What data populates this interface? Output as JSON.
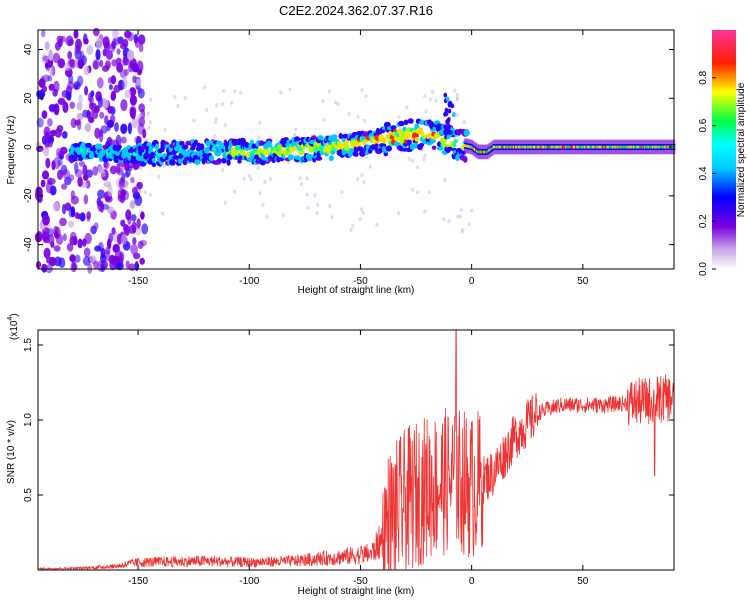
{
  "title": "C2E2.2024.362.07.37.R16",
  "chart_data": [
    {
      "type": "heatmap",
      "xlabel": "Height of straight line (km)",
      "ylabel": "Frequency (Hz)",
      "xlim": [
        -195,
        91
      ],
      "ylim": [
        -50,
        48
      ],
      "xticks": [
        -150,
        -100,
        -50,
        0,
        50
      ],
      "yticks": [
        -40,
        -20,
        0,
        20,
        40
      ],
      "colorbar": {
        "label": "Normalized spectral amplitude",
        "range": [
          0.0,
          1.0
        ],
        "ticks": [
          "0.0",
          "0.2",
          "0.4",
          "0.6",
          "0.8"
        ],
        "colormap": [
          "#ffffff",
          "#9400d3",
          "#0000ff",
          "#00ffff",
          "#00ff00",
          "#ffff00",
          "#ff0000",
          "#ff1493"
        ]
      },
      "ridge": [
        {
          "x": -175,
          "f": -2
        },
        {
          "x": -150,
          "f": -3
        },
        {
          "x": -120,
          "f": -2
        },
        {
          "x": -100,
          "f": -2
        },
        {
          "x": -80,
          "f": -1
        },
        {
          "x": -60,
          "f": 0
        },
        {
          "x": -40,
          "f": 3
        },
        {
          "x": -20,
          "f": 6
        },
        {
          "x": -10,
          "f": 2
        },
        {
          "x": 0,
          "f": 0
        },
        {
          "x": 3,
          "f": -2
        },
        {
          "x": 7,
          "f": -2
        },
        {
          "x": 10,
          "f": 0
        },
        {
          "x": 91,
          "f": 0
        }
      ]
    },
    {
      "type": "line",
      "xlabel": "Height of straight line (km)",
      "ylabel": "SNR (10 * v/v)",
      "yscale_label": "(x10",
      "yscale_exp": "4",
      "yscale_close": ")",
      "xlim": [
        -195,
        91
      ],
      "ylim": [
        0,
        1.6
      ],
      "xticks": [
        -150,
        -100,
        -50,
        0,
        50
      ],
      "yticks": [
        0.5,
        1.0,
        1.5
      ],
      "ytick_labels": [
        "0.5",
        "1.0",
        "1.5"
      ],
      "color": "#ee3333",
      "envelope": [
        {
          "x": -195,
          "y": 0.01
        },
        {
          "x": -175,
          "y": 0.015
        },
        {
          "x": -160,
          "y": 0.03
        },
        {
          "x": -150,
          "y": 0.06
        },
        {
          "x": -120,
          "y": 0.07
        },
        {
          "x": -100,
          "y": 0.06
        },
        {
          "x": -80,
          "y": 0.07
        },
        {
          "x": -60,
          "y": 0.1
        },
        {
          "x": -45,
          "y": 0.13
        },
        {
          "x": -38,
          "y": 0.3
        },
        {
          "x": -30,
          "y": 0.45
        },
        {
          "x": -20,
          "y": 0.55
        },
        {
          "x": -10,
          "y": 0.6
        },
        {
          "x": -5,
          "y": 0.6
        },
        {
          "x": 0,
          "y": 0.55
        },
        {
          "x": 10,
          "y": 0.65
        },
        {
          "x": 20,
          "y": 0.9
        },
        {
          "x": 30,
          "y": 1.05
        },
        {
          "x": 40,
          "y": 1.1
        },
        {
          "x": 60,
          "y": 1.1
        },
        {
          "x": 75,
          "y": 1.12
        },
        {
          "x": 91,
          "y": 1.15
        }
      ],
      "peak": {
        "x": -7,
        "y": 1.62
      }
    }
  ]
}
